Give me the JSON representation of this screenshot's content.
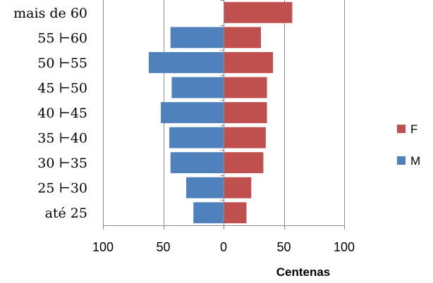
{
  "chart_data": {
    "type": "bar",
    "orientation": "horizontal",
    "layout": "population-pyramid",
    "categories": [
      "mais de 60",
      "55 ⊢60",
      "50 ⊢55",
      "45 ⊢50",
      "40 ⊢45",
      "35 ⊢40",
      "30 ⊢35",
      "25 ⊢30",
      "até 25"
    ],
    "series": [
      {
        "name": "M",
        "color": "#4F81BD",
        "values": [
          0,
          44,
          62,
          43,
          52,
          45,
          44,
          31,
          25
        ]
      },
      {
        "name": "F",
        "color": "#C0504D",
        "values": [
          57,
          31,
          41,
          36,
          36,
          35,
          33,
          23,
          19
        ]
      }
    ],
    "xlim": [
      -100,
      100
    ],
    "xticks": [
      {
        "value": -100,
        "label": "100"
      },
      {
        "value": -50,
        "label": "50"
      },
      {
        "value": 0,
        "label": "0"
      },
      {
        "value": 50,
        "label": "50"
      },
      {
        "value": 100,
        "label": "100"
      }
    ],
    "xlabel": "Centenas",
    "grid": "vertical",
    "legend_position": "right",
    "legend_order": [
      "F",
      "M"
    ]
  }
}
